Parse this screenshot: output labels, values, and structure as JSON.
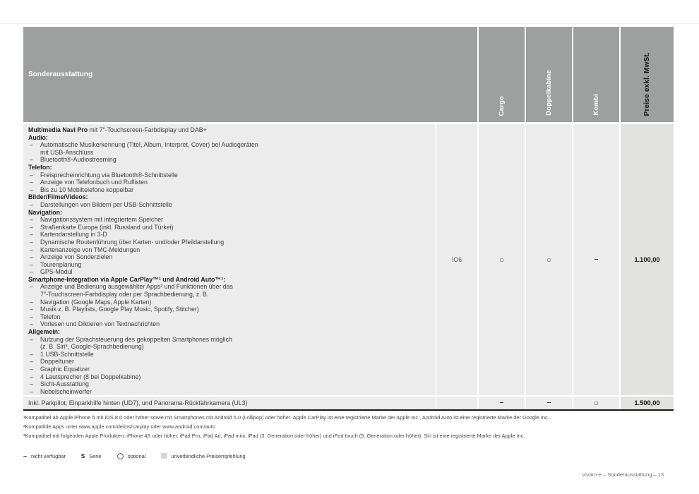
{
  "page": {
    "footer": "Vivaro-e – Sonderausstattung – 13"
  },
  "table": {
    "title": "Sonderausstattung",
    "columns": [
      "Cargo",
      "Doppelkabine",
      "Kombi",
      "Preise exkl. MwSt."
    ],
    "rows": [
      {
        "lines": [
          {
            "t": "lead",
            "b": "Multimedia Navi Pro",
            "r": " mit 7″-Touchscreen-Farbdisplay und DAB+"
          },
          {
            "t": "h",
            "text": "Audio:"
          },
          {
            "t": "d",
            "text": "Automatische Musikerkennung (Titel, Album, Interpret, Cover) bei Audiogeräten"
          },
          {
            "t": "c",
            "text": "mit USB-Anschluss"
          },
          {
            "t": "d",
            "text": "Bluetooth®-Audiostreaming"
          },
          {
            "t": "h",
            "text": "Telefon:"
          },
          {
            "t": "d",
            "text": "Freisprecheinrichtung via Bluetooth®-Schnittstelle"
          },
          {
            "t": "d",
            "text": "Anzeige von Telefonbuch und Ruflisten"
          },
          {
            "t": "d",
            "text": "Bis zu 10 Mobiltelefone koppelbar"
          },
          {
            "t": "h",
            "text": "Bilder/Filme/Videos:"
          },
          {
            "t": "d",
            "text": "Darstellungen von Bildern per USB-Schnittstelle"
          },
          {
            "t": "h",
            "text": "Navigation:"
          },
          {
            "t": "d",
            "text": "Navigationssystem mit integriertem Speicher"
          },
          {
            "t": "d",
            "text": "Straßenkarte Europa (inkl. Russland und Türkei)"
          },
          {
            "t": "d",
            "text": "Kartendarstellung in 3-D"
          },
          {
            "t": "d",
            "text": "Dynamische Routenführung über Karten- und/oder Pfeildarstellung"
          },
          {
            "t": "d",
            "text": "Kartenanzeige von TMC-Meldungen"
          },
          {
            "t": "d",
            "text": "Anzeige von Sonderzielen"
          },
          {
            "t": "d",
            "text": "Tourenplanung"
          },
          {
            "t": "d",
            "text": "GPS-Modul"
          },
          {
            "t": "h",
            "text": "Smartphone-Integration via Apple CarPlay™¹ und Android Auto™¹:"
          },
          {
            "t": "d",
            "text": "Anzeige und Bedienung ausgewählter Apps² und Funktionen über das"
          },
          {
            "t": "c",
            "text": "7″-Touchscreen-Farbdisplay oder per Sprachbedienung, z. B."
          },
          {
            "t": "d",
            "text": "Navigation (Google Maps, Apple Karten)"
          },
          {
            "t": "d",
            "text": "Musik z. B. Playlists, Google Play Music, Spotify, Stitcher)"
          },
          {
            "t": "d",
            "text": "Telefon"
          },
          {
            "t": "d",
            "text": "Vorlesen und Diktieren von Textnachrichten"
          },
          {
            "t": "h",
            "text": "Allgemein:"
          },
          {
            "t": "d",
            "text": "Nutzung der Sprachsteuerung des gekoppelten Smartphones möglich"
          },
          {
            "t": "c",
            "text": "(z. B. Siri³, Google-Sprachbedienung)"
          },
          {
            "t": "d",
            "text": "1 USB-Schnittstelle"
          },
          {
            "t": "d",
            "text": "Doppeltuner"
          },
          {
            "t": "d",
            "text": "Graphic Equalizer"
          },
          {
            "t": "d",
            "text": "4 Lautsprecher (8 bei Doppelkabine)"
          },
          {
            "t": "d",
            "text": "Sicht-Ausstattung"
          },
          {
            "t": "d",
            "text": "Nebelscheinwerfer"
          }
        ],
        "code": "IO6",
        "cargo": "○",
        "doppelkabine": "○",
        "kombi": "–",
        "price": "1.100,00"
      },
      {
        "description": "Inkl. Parkpilot, Einparkhilfe hinten (UD7), und Panorama-Rückfahrkamera (UL3)",
        "code": "",
        "cargo": "–",
        "doppelkabine": "–",
        "kombi": "○",
        "price": "1.500,00"
      }
    ]
  },
  "footnotes": [
    "¹Kompatibel ab Apple iPhone 5 mit iOS 8.0 oder höher sowie mit Smartphones mit Android 5.0 (Lollipop) oder höher. Apple CarPlay ist eine registrierte Marke der Apple Inc., Android Auto ist eine registrierte Marke der Google Inc.",
    "²Kompatible Apps unter www.apple.com/de/ios/carplay oder www.android.com/auto",
    "³Kompatibel mit folgenden Apple Produkten: iPhone 4S oder höher, iPad Pro, iPad Air, iPad mini, iPad (3. Generation oder höher) und iPod touch (5. Generation oder höher). Siri ist eine registrierte Marke der Apple Inc."
  ],
  "legend": [
    {
      "sym": "dash",
      "label": "nicht verfügbar"
    },
    {
      "sym": "S",
      "label": "Serie"
    },
    {
      "sym": "circle",
      "label": "optional"
    },
    {
      "sym": "square",
      "label": "unverbindliche Preisempfehlung"
    }
  ]
}
